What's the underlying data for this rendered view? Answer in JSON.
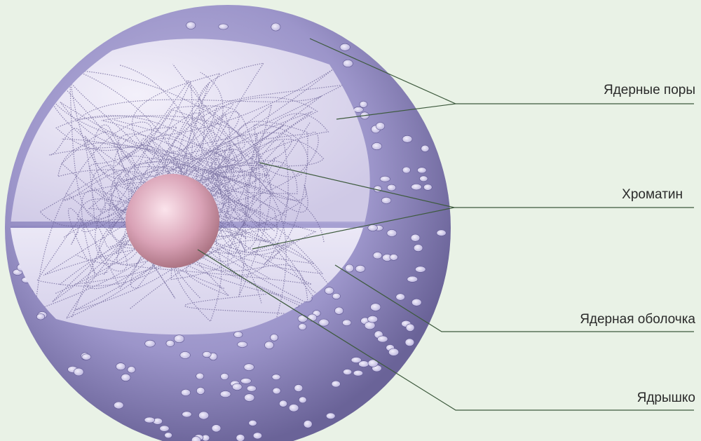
{
  "labels": {
    "pores": "Ядерные поры",
    "chromatin": "Хроматин",
    "envelope": "Ядерная оболочка",
    "nucleolus": "Ядрышко"
  },
  "colors": {
    "background": "#e9f2e6",
    "sphere_light": "#c6c1e4",
    "sphere_mid": "#9c95ca",
    "sphere_dark": "#6a6398",
    "inner_light": "#ede9f7",
    "inner_mid": "#d3cde9",
    "chromatin": "#6b6296",
    "nucleolus_light": "#fbe4ec",
    "nucleolus_mid": "#d9a2b6",
    "nucleolus_dark": "#a8707f",
    "leader_line": "#3d5a3d",
    "text": "#2a2a2a"
  }
}
